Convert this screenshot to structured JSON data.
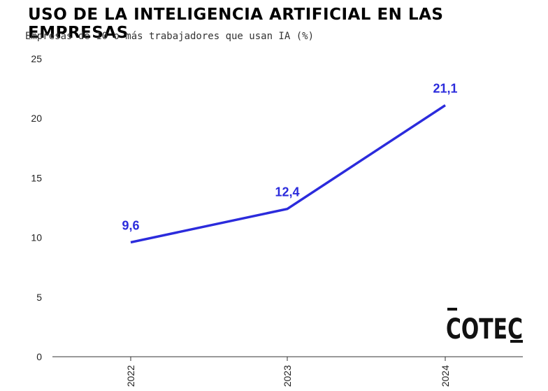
{
  "title": "USO DE LA INTELIGENCIA ARTIFICIAL EN LAS EMPRESAS",
  "subtitle": "Empresas de 10 o más trabajadores que usan IA (%)",
  "logo_text": "COTEC",
  "colors": {
    "line": "#2b2bdc",
    "text": "#000000",
    "axis": "#222222"
  },
  "chart_data": {
    "type": "line",
    "title": "USO DE LA INTELIGENCIA ARTIFICIAL EN LAS EMPRESAS",
    "subtitle": "Empresas de 10 o más trabajadores que usan IA (%)",
    "xlabel": "",
    "ylabel": "",
    "categories": [
      "2022",
      "2023",
      "2024"
    ],
    "series": [
      {
        "values": [
          9.6,
          12.4,
          21.1
        ],
        "labels": [
          "9,6",
          "12,4",
          "21,1"
        ]
      }
    ],
    "ylim": [
      0,
      25
    ],
    "yticks": [
      "0",
      "5",
      "10",
      "15",
      "20",
      "25"
    ],
    "grid": false,
    "legend": "none"
  }
}
